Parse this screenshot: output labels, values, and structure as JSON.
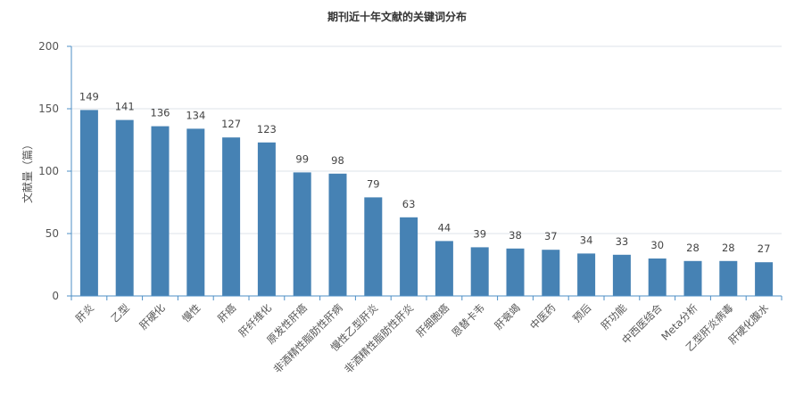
{
  "chart_data": {
    "type": "bar",
    "title": "期刊近十年文献的关键词分布",
    "xlabel": "",
    "ylabel": "文献量（篇）",
    "ylim": [
      0,
      200
    ],
    "yticks": [
      0,
      50,
      100,
      150,
      200
    ],
    "grid": true,
    "categories": [
      "肝炎",
      "乙型",
      "肝硬化",
      "慢性",
      "肝癌",
      "肝纤维化",
      "原发性肝癌",
      "非酒精性脂肪性肝病",
      "慢性乙型肝炎",
      "非酒精性脂肪性肝炎",
      "肝细胞癌",
      "恩替卡韦",
      "肝衰竭",
      "中医药",
      "预后",
      "肝功能",
      "中西医结合",
      "Meta分析",
      "乙型肝炎病毒",
      "肝硬化腹水"
    ],
    "values": [
      149,
      141,
      136,
      134,
      127,
      123,
      99,
      98,
      79,
      63,
      44,
      39,
      38,
      37,
      34,
      33,
      30,
      28,
      28,
      27
    ],
    "colors": {
      "bar": "#4682b4",
      "axis": "#4d8fc6",
      "grid": "#dde3ea"
    }
  }
}
